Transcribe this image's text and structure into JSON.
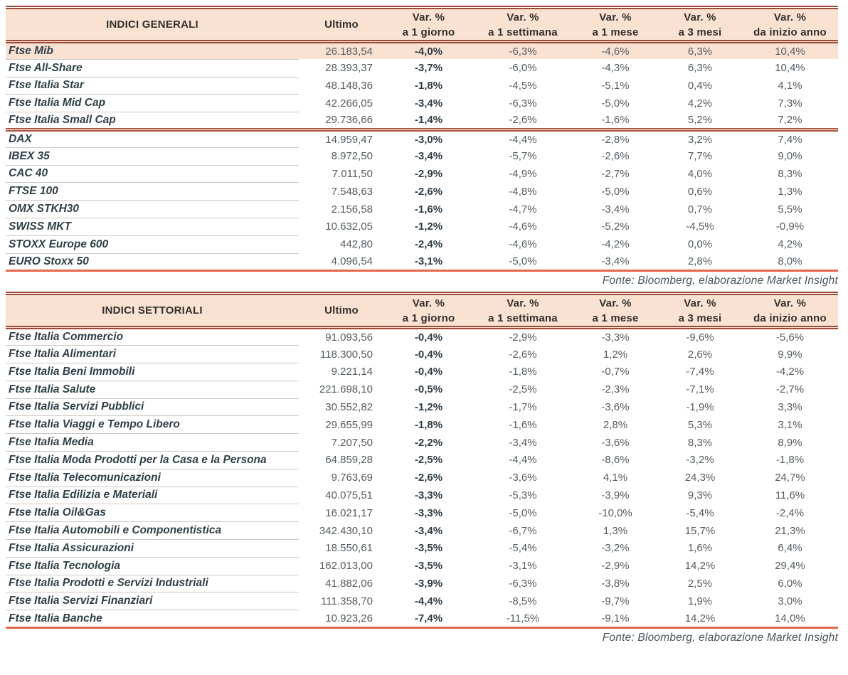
{
  "theme": {
    "header_bg": "#fae2d2",
    "highlight_row_bg": "#fae2d2",
    "double_rule_color": "#9d4b38",
    "section_rule_color": "#ad5640",
    "bottom_rule_color": "#e4664b",
    "row_line_color": "#c9c9c9",
    "name_text_color": "#2f4048",
    "number_text_color": "#555c61",
    "source_text_color": "#48565e"
  },
  "chart_data": [
    {
      "type": "table",
      "title": "INDICI GENERALI",
      "columns": {
        "ultimo": "Ultimo",
        "var": [
          {
            "line1": "Var. %",
            "line2": "a 1 giorno"
          },
          {
            "line1": "Var. %",
            "line2": "a 1 settimana"
          },
          {
            "line1": "Var. %",
            "line2": "a 1 mese"
          },
          {
            "line1": "Var. %",
            "line2": "a 3 mesi"
          },
          {
            "line1": "Var. %",
            "line2": "da inizio anno"
          }
        ]
      },
      "rows": [
        {
          "name": "Ftse Mib",
          "ultimo": "26.183,54",
          "d1": "-4,0%",
          "w1": "-6,3%",
          "m1": "-4,6%",
          "m3": "6,3%",
          "ytd": "10,4%",
          "highlight": true
        },
        {
          "name": "Ftse All-Share",
          "ultimo": "28.393,37",
          "d1": "-3,7%",
          "w1": "-6,0%",
          "m1": "-4,3%",
          "m3": "6,3%",
          "ytd": "10,4%"
        },
        {
          "name": "Ftse Italia Star",
          "ultimo": "48.148,36",
          "d1": "-1,8%",
          "w1": "-4,5%",
          "m1": "-5,1%",
          "m3": "0,4%",
          "ytd": "4,1%"
        },
        {
          "name": "Ftse Italia Mid Cap",
          "ultimo": "42.266,05",
          "d1": "-3,4%",
          "w1": "-6,3%",
          "m1": "-5,0%",
          "m3": "4,2%",
          "ytd": "7,3%"
        },
        {
          "name": "Ftse Italia Small Cap",
          "ultimo": "29.736,66",
          "d1": "-1,4%",
          "w1": "-2,6%",
          "m1": "-1,6%",
          "m3": "5,2%",
          "ytd": "7,2%"
        },
        {
          "name": "DAX",
          "ultimo": "14.959,47",
          "d1": "-3,0%",
          "w1": "-4,4%",
          "m1": "-2,8%",
          "m3": "3,2%",
          "ytd": "7,4%",
          "section_start": true
        },
        {
          "name": "IBEX 35",
          "ultimo": "8.972,50",
          "d1": "-3,4%",
          "w1": "-5,7%",
          "m1": "-2,6%",
          "m3": "7,7%",
          "ytd": "9,0%"
        },
        {
          "name": "CAC 40",
          "ultimo": "7.011,50",
          "d1": "-2,9%",
          "w1": "-4,9%",
          "m1": "-2,7%",
          "m3": "4,0%",
          "ytd": "8,3%"
        },
        {
          "name": "FTSE 100",
          "ultimo": "7.548,63",
          "d1": "-2,6%",
          "w1": "-4,8%",
          "m1": "-5,0%",
          "m3": "0,6%",
          "ytd": "1,3%"
        },
        {
          "name": "OMX STKH30",
          "ultimo": "2.156,58",
          "d1": "-1,6%",
          "w1": "-4,7%",
          "m1": "-3,4%",
          "m3": "0,7%",
          "ytd": "5,5%"
        },
        {
          "name": "SWISS MKT",
          "ultimo": "10.632,05",
          "d1": "-1,2%",
          "w1": "-4,6%",
          "m1": "-5,2%",
          "m3": "-4,5%",
          "ytd": "-0,9%"
        },
        {
          "name": "STOXX Europe 600",
          "ultimo": "442,80",
          "d1": "-2,4%",
          "w1": "-4,6%",
          "m1": "-4,2%",
          "m3": "0,0%",
          "ytd": "4,2%"
        },
        {
          "name": "EURO Stoxx 50",
          "ultimo": "4.096,54",
          "d1": "-3,1%",
          "w1": "-5,0%",
          "m1": "-3,4%",
          "m3": "2,8%",
          "ytd": "8,0%"
        }
      ],
      "source": "Fonte: Bloomberg, elaborazione Market Insight"
    },
    {
      "type": "table",
      "title": "INDICI SETTORIALI",
      "columns": {
        "ultimo": "Ultimo",
        "var": [
          {
            "line1": "Var. %",
            "line2": "a 1 giorno"
          },
          {
            "line1": "Var. %",
            "line2": "a 1 settimana"
          },
          {
            "line1": "Var. %",
            "line2": "a 1 mese"
          },
          {
            "line1": "Var. %",
            "line2": "a 3 mesi"
          },
          {
            "line1": "Var. %",
            "line2": "da inizio anno"
          }
        ]
      },
      "rows": [
        {
          "name": "Ftse Italia Commercio",
          "ultimo": "91.093,56",
          "d1": "-0,4%",
          "w1": "-2,9%",
          "m1": "-3,3%",
          "m3": "-9,6%",
          "ytd": "-5,6%"
        },
        {
          "name": "Ftse Italia Alimentari",
          "ultimo": "118.300,50",
          "d1": "-0,4%",
          "w1": "-2,6%",
          "m1": "1,2%",
          "m3": "2,6%",
          "ytd": "9,9%"
        },
        {
          "name": "Ftse Italia Beni Immobili",
          "ultimo": "9.221,14",
          "d1": "-0,4%",
          "w1": "-1,8%",
          "m1": "-0,7%",
          "m3": "-7,4%",
          "ytd": "-4,2%"
        },
        {
          "name": "Ftse Italia Salute",
          "ultimo": "221.698,10",
          "d1": "-0,5%",
          "w1": "-2,5%",
          "m1": "-2,3%",
          "m3": "-7,1%",
          "ytd": "-2,7%"
        },
        {
          "name": "Ftse Italia Servizi Pubblici",
          "ultimo": "30.552,82",
          "d1": "-1,2%",
          "w1": "-1,7%",
          "m1": "-3,6%",
          "m3": "-1,9%",
          "ytd": "3,3%"
        },
        {
          "name": "Ftse Italia Viaggi e Tempo Libero",
          "ultimo": "29.655,99",
          "d1": "-1,8%",
          "w1": "-1,6%",
          "m1": "2,8%",
          "m3": "5,3%",
          "ytd": "3,1%"
        },
        {
          "name": "Ftse Italia Media",
          "ultimo": "7.207,50",
          "d1": "-2,2%",
          "w1": "-3,4%",
          "m1": "-3,6%",
          "m3": "8,3%",
          "ytd": "8,9%"
        },
        {
          "name": "Ftse Italia Moda Prodotti per la Casa e la Persona",
          "ultimo": "64.859,28",
          "d1": "-2,5%",
          "w1": "-4,4%",
          "m1": "-8,6%",
          "m3": "-3,2%",
          "ytd": "-1,8%"
        },
        {
          "name": "Ftse Italia Telecomunicazioni",
          "ultimo": "9.763,69",
          "d1": "-2,6%",
          "w1": "-3,6%",
          "m1": "4,1%",
          "m3": "24,3%",
          "ytd": "24,7%"
        },
        {
          "name": "Ftse Italia Edilizia e Materiali",
          "ultimo": "40.075,51",
          "d1": "-3,3%",
          "w1": "-5,3%",
          "m1": "-3,9%",
          "m3": "9,3%",
          "ytd": "11,6%"
        },
        {
          "name": "Ftse Italia Oil&Gas",
          "ultimo": "16.021,17",
          "d1": "-3,3%",
          "w1": "-5,0%",
          "m1": "-10,0%",
          "m3": "-5,4%",
          "ytd": "-2,4%"
        },
        {
          "name": "Ftse Italia Automobili e Componentistica",
          "ultimo": "342.430,10",
          "d1": "-3,4%",
          "w1": "-6,7%",
          "m1": "1,3%",
          "m3": "15,7%",
          "ytd": "21,3%"
        },
        {
          "name": "Ftse Italia Assicurazioni",
          "ultimo": "18.550,61",
          "d1": "-3,5%",
          "w1": "-5,4%",
          "m1": "-3,2%",
          "m3": "1,6%",
          "ytd": "6,4%"
        },
        {
          "name": "Ftse Italia Tecnologia",
          "ultimo": "162.013,00",
          "d1": "-3,5%",
          "w1": "-3,1%",
          "m1": "-2,9%",
          "m3": "14,2%",
          "ytd": "29,4%"
        },
        {
          "name": "Ftse Italia Prodotti e Servizi Industriali",
          "ultimo": "41.882,06",
          "d1": "-3,9%",
          "w1": "-6,3%",
          "m1": "-3,8%",
          "m3": "2,5%",
          "ytd": "6,0%"
        },
        {
          "name": "Ftse Italia Servizi Finanziari",
          "ultimo": "111.358,70",
          "d1": "-4,4%",
          "w1": "-8,5%",
          "m1": "-9,7%",
          "m3": "1,9%",
          "ytd": "3,0%"
        },
        {
          "name": "Ftse Italia Banche",
          "ultimo": "10.923,26",
          "d1": "-7,4%",
          "w1": "-11,5%",
          "m1": "-9,1%",
          "m3": "14,2%",
          "ytd": "14,0%"
        }
      ],
      "source": "Fonte: Bloomberg, elaborazione Market Insight"
    }
  ]
}
